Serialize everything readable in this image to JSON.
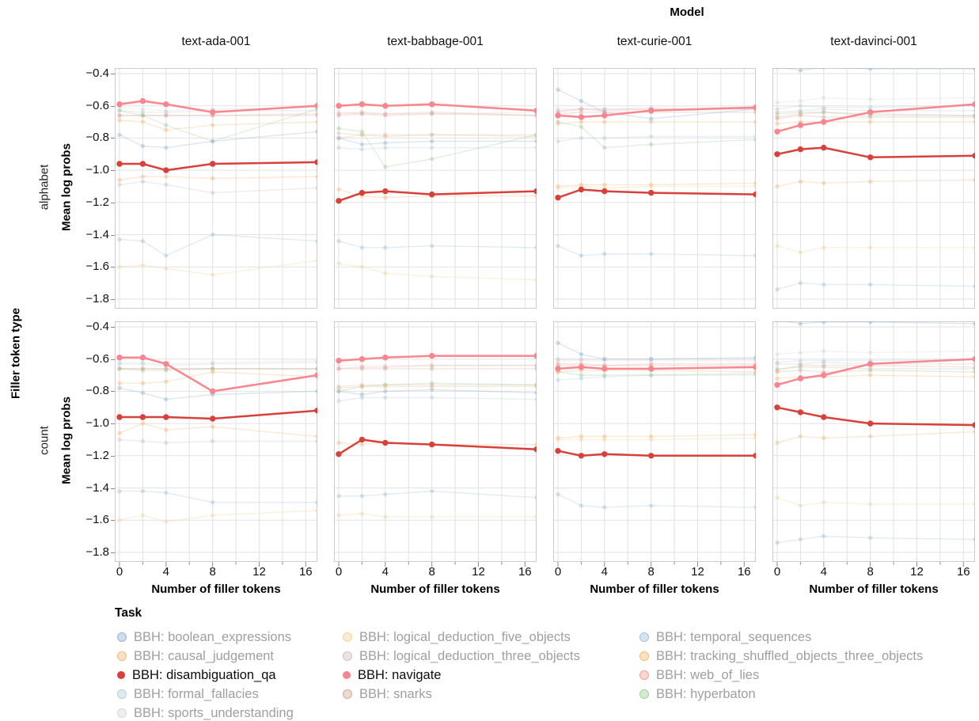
{
  "figure": {
    "title": "Model",
    "facet_row_title": "Filler token type",
    "legend_title": "Task"
  },
  "chart_data": {
    "type": "line",
    "title": "Model",
    "xlabel": "Number of filler tokens",
    "ylabel": "Mean log probs",
    "facet_row_label": "Filler token type",
    "facet_rows": [
      "alphabet",
      "count"
    ],
    "facet_cols": [
      "text-ada-001",
      "text-babbage-001",
      "text-curie-001",
      "text-davinci-001"
    ],
    "x": [
      0,
      2,
      4,
      8,
      17
    ],
    "x_ticks": [
      0,
      4,
      8,
      12,
      16
    ],
    "x_minor_ticks": [
      2,
      6,
      10,
      14
    ],
    "y_ticks": [
      -0.4,
      -0.6,
      -0.8,
      -1.0,
      -1.2,
      -1.4,
      -1.6,
      -1.8
    ],
    "xlim": [
      -0.41,
      17
    ],
    "ylim": [
      -1.86,
      -0.365
    ],
    "grid": true,
    "legend_position": "bottom",
    "legend_title": "Task",
    "tasks": [
      {
        "id": "bool",
        "label": "BBH: boolean_expressions",
        "color": "#92b5d8",
        "highlighted": false,
        "legend_col": 0
      },
      {
        "id": "causal",
        "label": "BBH: causal_judgement",
        "color": "#f3b97f",
        "highlighted": false,
        "legend_col": 0
      },
      {
        "id": "disamb",
        "label": "BBH: disambiguation_qa",
        "color": "#d8403a",
        "highlighted": true,
        "legend_col": 0
      },
      {
        "id": "formal",
        "label": "BBH: formal_fallacies",
        "color": "#b7cfdb",
        "highlighted": false,
        "legend_col": 0
      },
      {
        "id": "sports",
        "label": "BBH: sports_understanding",
        "color": "#d9d9d9",
        "highlighted": false,
        "legend_col": 0
      },
      {
        "id": "ld5",
        "label": "BBH: logical_deduction_five_objects",
        "color": "#f1d49f",
        "highlighted": false,
        "legend_col": 1
      },
      {
        "id": "ld3",
        "label": "BBH: logical_deduction_three_objects",
        "color": "#cbc3c7",
        "highlighted": false,
        "legend_col": 1
      },
      {
        "id": "navigate",
        "label": "BBH: navigate",
        "color": "#f9868f",
        "highlighted": true,
        "legend_col": 1
      },
      {
        "id": "snarks",
        "label": "BBH: snarks",
        "color": "#d1ae9e",
        "highlighted": false,
        "legend_col": 1
      },
      {
        "id": "temporal",
        "label": "BBH: temporal_sequences",
        "color": "#a3c3de",
        "highlighted": false,
        "legend_col": 2
      },
      {
        "id": "tracking",
        "label": "BBH: tracking_shuffled_objects_three_objects",
        "color": "#f6ba77",
        "highlighted": false,
        "legend_col": 2
      },
      {
        "id": "web",
        "label": "BBH: web_of_lies",
        "color": "#f2a39c",
        "highlighted": false,
        "legend_col": 2
      },
      {
        "id": "hyper",
        "label": "BBH: hyperbaton",
        "color": "#a3d19b",
        "highlighted": false,
        "legend_col": 2
      }
    ],
    "panels": [
      {
        "model": "text-ada-001",
        "filler": "alphabet",
        "series": {
          "bool": [
            -0.78,
            -0.85,
            -0.86,
            -0.82,
            -0.76
          ],
          "causal": [
            -1.06,
            -1.04,
            -1.04,
            -1.05,
            -1.04
          ],
          "disamb": [
            -0.96,
            -0.96,
            -1.0,
            -0.96,
            -0.95
          ],
          "formal": [
            -0.63,
            -0.64,
            -0.64,
            -0.63,
            -0.63
          ],
          "sports": [
            -0.61,
            -0.62,
            -0.63,
            -0.62,
            -0.61
          ],
          "ld5": [
            -1.6,
            -1.59,
            -1.61,
            -1.65,
            -1.56
          ],
          "ld3": [
            -1.09,
            -1.07,
            -1.09,
            -1.14,
            -1.11
          ],
          "navigate": [
            -0.59,
            -0.57,
            -0.59,
            -0.64,
            -0.6
          ],
          "snarks": [
            -0.66,
            -0.66,
            -0.66,
            -0.66,
            -0.66
          ],
          "temporal": [
            -1.43,
            -1.44,
            -1.53,
            -1.4,
            -1.44
          ],
          "tracking": [
            -0.69,
            -0.7,
            -0.75,
            -0.72,
            -0.7
          ],
          "web": [
            -0.66,
            -0.66,
            -0.66,
            -0.66,
            -0.65
          ],
          "hyper": [
            -0.63,
            -0.66,
            -0.72,
            -0.82,
            -0.62
          ]
        }
      },
      {
        "model": "text-babbage-001",
        "filler": "alphabet",
        "series": {
          "bool": [
            -0.8,
            -0.84,
            -0.83,
            -0.82,
            -0.82
          ],
          "causal": [
            -1.12,
            -1.16,
            -1.17,
            -1.16,
            -1.16
          ],
          "disamb": [
            -1.19,
            -1.14,
            -1.13,
            -1.15,
            -1.13
          ],
          "formal": [
            -0.86,
            -0.87,
            -0.86,
            -0.86,
            -0.86
          ],
          "sports": [
            -0.64,
            -0.65,
            -0.65,
            -0.65,
            -0.64
          ],
          "ld5": [
            -1.58,
            -1.6,
            -1.64,
            -1.66,
            -1.68
          ],
          "ld3": [
            -0.77,
            -0.78,
            -0.78,
            -0.78,
            -0.78
          ],
          "navigate": [
            -0.6,
            -0.59,
            -0.6,
            -0.59,
            -0.63
          ],
          "snarks": [
            -0.66,
            -0.65,
            -0.66,
            -0.65,
            -0.66
          ],
          "temporal": [
            -1.44,
            -1.48,
            -1.48,
            -1.47,
            -1.48
          ],
          "tracking": [
            -0.8,
            -0.78,
            -0.79,
            -0.78,
            -0.79
          ],
          "web": [
            -0.65,
            -0.64,
            -0.65,
            -0.64,
            -0.66
          ],
          "hyper": [
            -0.74,
            -0.76,
            -0.98,
            -0.93,
            -0.78
          ]
        }
      },
      {
        "model": "text-curie-001",
        "filler": "alphabet",
        "series": {
          "bool": [
            -0.5,
            -0.57,
            -0.64,
            -0.68,
            -0.62
          ],
          "causal": [
            -0.71,
            -0.7,
            -0.7,
            -0.7,
            -0.7
          ],
          "disamb": [
            -1.17,
            -1.12,
            -1.13,
            -1.14,
            -1.15
          ],
          "formal": [
            -0.82,
            -0.8,
            -0.8,
            -0.79,
            -0.79
          ],
          "sports": [
            -0.62,
            -0.62,
            -0.62,
            -0.61,
            -0.61
          ],
          "ld5": [
            -1.11,
            -1.1,
            -1.11,
            -1.1,
            -1.1
          ],
          "ld3": [
            -0.63,
            -0.62,
            -0.62,
            -0.62,
            -0.62
          ],
          "navigate": [
            -0.66,
            -0.67,
            -0.66,
            -0.63,
            -0.61
          ],
          "snarks": [
            -0.65,
            -0.64,
            -0.64,
            -0.64,
            -0.64
          ],
          "temporal": [
            -1.47,
            -1.53,
            -1.52,
            -1.52,
            -1.53
          ],
          "tracking": [
            -1.1,
            -1.09,
            -1.09,
            -1.09,
            -1.08
          ],
          "web": [
            -0.64,
            -0.62,
            -0.63,
            -0.62,
            -0.62
          ],
          "hyper": [
            -0.7,
            -0.73,
            -0.86,
            -0.84,
            -0.81
          ]
        }
      },
      {
        "model": "text-davinci-001",
        "filler": "alphabet",
        "series": {
          "bool": [
            -0.36,
            -0.38,
            -0.36,
            -0.37,
            -0.37
          ],
          "causal": [
            -1.1,
            -1.07,
            -1.08,
            -1.07,
            -1.06
          ],
          "disamb": [
            -0.9,
            -0.87,
            -0.86,
            -0.92,
            -0.91
          ],
          "formal": [
            -0.62,
            -0.6,
            -0.61,
            -0.61,
            -0.6
          ],
          "sports": [
            -0.58,
            -0.57,
            -0.55,
            -0.56,
            -0.55
          ],
          "ld5": [
            -1.47,
            -1.51,
            -1.48,
            -1.48,
            -1.48
          ],
          "ld3": [
            -0.64,
            -0.63,
            -0.62,
            -0.63,
            -0.63
          ],
          "navigate": [
            -0.76,
            -0.72,
            -0.7,
            -0.64,
            -0.59
          ],
          "snarks": [
            -0.68,
            -0.66,
            -0.67,
            -0.67,
            -0.67
          ],
          "temporal": [
            -1.74,
            -1.7,
            -1.71,
            -1.71,
            -1.72
          ],
          "tracking": [
            -0.71,
            -0.7,
            -0.7,
            -0.7,
            -0.7
          ],
          "web": [
            -0.67,
            -0.65,
            -0.64,
            -0.65,
            -0.66
          ],
          "hyper": [
            -0.65,
            -0.64,
            -0.64,
            -0.66,
            -0.66
          ]
        }
      },
      {
        "model": "text-ada-001",
        "filler": "count",
        "series": {
          "bool": [
            -0.78,
            -0.81,
            -0.85,
            -0.82,
            -0.8
          ],
          "causal": [
            -1.06,
            -1.0,
            -1.04,
            -1.02,
            -1.08
          ],
          "disamb": [
            -0.96,
            -0.96,
            -0.96,
            -0.97,
            -0.92
          ],
          "formal": [
            -0.63,
            -0.63,
            -0.64,
            -0.63,
            -0.62
          ],
          "sports": [
            -0.62,
            -0.62,
            -0.63,
            -0.62,
            -0.61
          ],
          "ld5": [
            -1.6,
            -1.57,
            -1.61,
            -1.57,
            -1.54
          ],
          "ld3": [
            -1.1,
            -1.11,
            -1.12,
            -1.11,
            -1.11
          ],
          "navigate": [
            -0.59,
            -0.59,
            -0.63,
            -0.8,
            -0.7
          ],
          "snarks": [
            -0.66,
            -0.66,
            -0.66,
            -0.66,
            -0.66
          ],
          "temporal": [
            -1.42,
            -1.42,
            -1.43,
            -1.49,
            -1.49
          ],
          "tracking": [
            -0.75,
            -0.75,
            -0.74,
            -0.68,
            -0.71
          ],
          "web": [
            -0.66,
            -0.66,
            -0.66,
            -0.66,
            -0.66
          ],
          "hyper": [
            -0.66,
            -0.67,
            -0.67,
            -0.66,
            -0.66
          ]
        }
      },
      {
        "model": "text-babbage-001",
        "filler": "count",
        "series": {
          "bool": [
            -0.8,
            -0.82,
            -0.8,
            -0.79,
            -0.81
          ],
          "causal": [
            -1.12,
            -1.13,
            -1.12,
            -1.13,
            -1.13
          ],
          "disamb": [
            -1.19,
            -1.1,
            -1.12,
            -1.13,
            -1.16
          ],
          "formal": [
            -0.86,
            -0.84,
            -0.84,
            -0.84,
            -0.85
          ],
          "sports": [
            -0.64,
            -0.64,
            -0.64,
            -0.64,
            -0.64
          ],
          "ld5": [
            -1.57,
            -1.56,
            -1.58,
            -1.58,
            -1.58
          ],
          "ld3": [
            -0.77,
            -0.76,
            -0.76,
            -0.76,
            -0.76
          ],
          "navigate": [
            -0.61,
            -0.6,
            -0.59,
            -0.58,
            -0.58
          ],
          "snarks": [
            -0.66,
            -0.66,
            -0.66,
            -0.66,
            -0.66
          ],
          "temporal": [
            -1.45,
            -1.45,
            -1.44,
            -1.42,
            -1.46
          ],
          "tracking": [
            -0.78,
            -0.77,
            -0.77,
            -0.77,
            -0.77
          ],
          "web": [
            -0.66,
            -0.65,
            -0.65,
            -0.64,
            -0.64
          ],
          "hyper": [
            -0.8,
            -0.77,
            -0.76,
            -0.75,
            -0.76
          ]
        }
      },
      {
        "model": "text-curie-001",
        "filler": "count",
        "series": {
          "bool": [
            -0.5,
            -0.57,
            -0.6,
            -0.6,
            -0.59
          ],
          "causal": [
            -0.68,
            -0.67,
            -0.67,
            -0.67,
            -0.68
          ],
          "disamb": [
            -1.17,
            -1.2,
            -1.19,
            -1.2,
            -1.2
          ],
          "formal": [
            -0.73,
            -0.72,
            -0.71,
            -0.7,
            -0.7
          ],
          "sports": [
            -0.61,
            -0.61,
            -0.61,
            -0.61,
            -0.61
          ],
          "ld5": [
            -1.1,
            -1.1,
            -1.1,
            -1.1,
            -1.09
          ],
          "ld3": [
            -0.6,
            -0.6,
            -0.6,
            -0.6,
            -0.6
          ],
          "navigate": [
            -0.66,
            -0.65,
            -0.66,
            -0.66,
            -0.65
          ],
          "snarks": [
            -0.64,
            -0.64,
            -0.64,
            -0.64,
            -0.64
          ],
          "temporal": [
            -1.44,
            -1.51,
            -1.52,
            -1.51,
            -1.52
          ],
          "tracking": [
            -1.09,
            -1.08,
            -1.08,
            -1.08,
            -1.07
          ],
          "web": [
            -0.63,
            -0.63,
            -0.64,
            -0.63,
            -0.63
          ],
          "hyper": [
            -0.68,
            -0.7,
            -0.7,
            -0.7,
            -0.69
          ]
        }
      },
      {
        "model": "text-davinci-001",
        "filler": "count",
        "series": {
          "bool": [
            -0.36,
            -0.38,
            -0.37,
            -0.37,
            -0.38
          ],
          "causal": [
            -1.12,
            -1.08,
            -1.09,
            -1.08,
            -1.05
          ],
          "disamb": [
            -0.9,
            -0.93,
            -0.96,
            -1.0,
            -1.01
          ],
          "formal": [
            -0.62,
            -0.61,
            -0.61,
            -0.61,
            -0.6
          ],
          "sports": [
            -0.57,
            -0.56,
            -0.55,
            -0.56,
            -0.55
          ],
          "ld5": [
            -1.46,
            -1.51,
            -1.49,
            -1.5,
            -1.5
          ],
          "ld3": [
            -0.63,
            -0.63,
            -0.62,
            -0.63,
            -0.63
          ],
          "navigate": [
            -0.76,
            -0.72,
            -0.7,
            -0.63,
            -0.6
          ],
          "snarks": [
            -0.68,
            -0.67,
            -0.68,
            -0.67,
            -0.68
          ],
          "temporal": [
            -1.74,
            -1.72,
            -1.7,
            -1.71,
            -1.72
          ],
          "tracking": [
            -0.72,
            -0.71,
            -0.71,
            -0.7,
            -0.71
          ],
          "web": [
            -0.67,
            -0.64,
            -0.64,
            -0.64,
            -0.65
          ],
          "hyper": [
            -0.66,
            -0.65,
            -0.65,
            -0.66,
            -0.66
          ]
        }
      }
    ],
    "colors": {
      "grid": "#e2e2e2",
      "panel_border": "#cccccc",
      "tick": "#8a8a8a",
      "highlight_red": "#d8403a",
      "highlight_pink": "#f9868f",
      "legend_muted_text": "#9f9f9f"
    }
  }
}
